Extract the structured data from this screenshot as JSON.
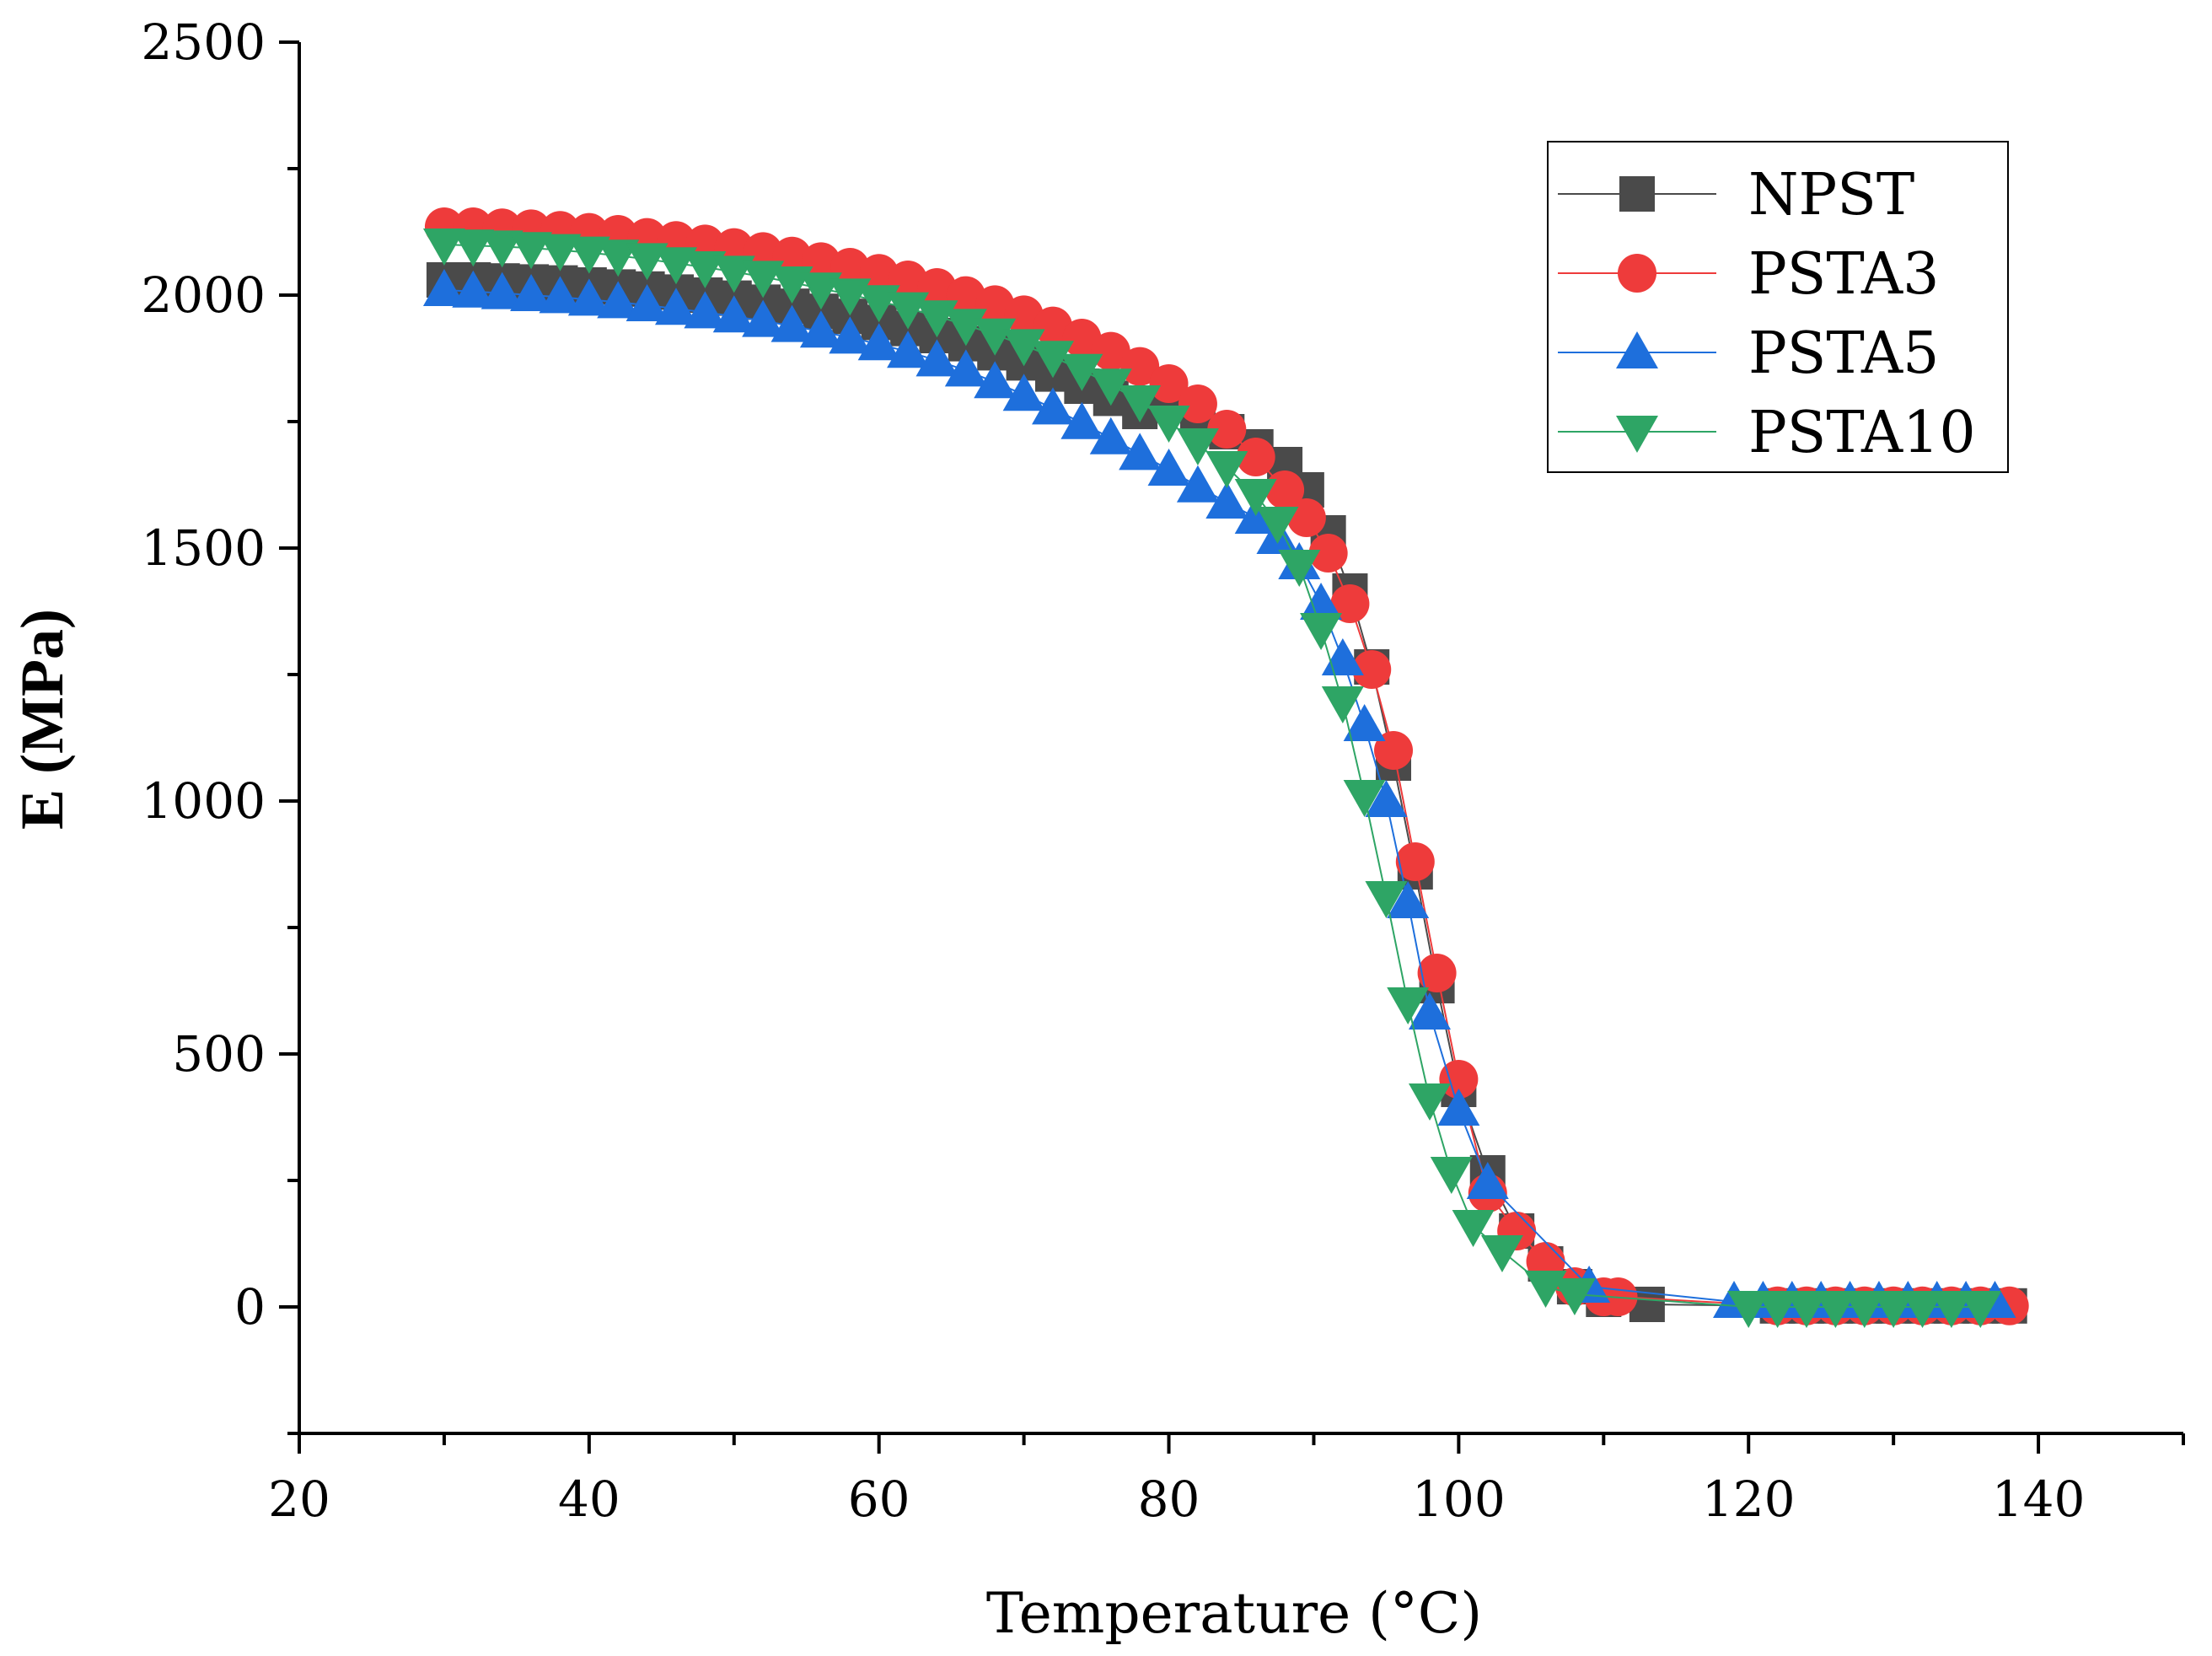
{
  "chart_data": {
    "type": "scatter",
    "title": "",
    "xlabel": "Temperature (°C)",
    "ylabel": "E (MPa)",
    "xlim": [
      20,
      150
    ],
    "ylim": [
      -250,
      2500
    ],
    "xticks": [
      20,
      40,
      60,
      80,
      100,
      120,
      140
    ],
    "yticks": [
      0,
      500,
      1000,
      1500,
      2000,
      2500
    ],
    "xtick_labels": [
      "20",
      "40",
      "60",
      "80",
      "100",
      "120",
      "140"
    ],
    "ytick_labels": [
      "0",
      "500",
      "1000",
      "1500",
      "2000",
      "2500"
    ],
    "legend_position": "top-right",
    "series": [
      {
        "name": "NPST",
        "marker": "square",
        "color": "#4a4a4a",
        "x": [
          30,
          32,
          34,
          36,
          38,
          40,
          42,
          44,
          46,
          48,
          50,
          52,
          54,
          56,
          58,
          60,
          62,
          64,
          66,
          68,
          70,
          72,
          74,
          76,
          78,
          80,
          82,
          84,
          86,
          88,
          89.5,
          91,
          92.5,
          94,
          95.5,
          97,
          98.5,
          100,
          102,
          104,
          106,
          108,
          110,
          113,
          122,
          124,
          126,
          128,
          130,
          132,
          134,
          136,
          138
        ],
        "y": [
          2030,
          2030,
          2028,
          2026,
          2024,
          2020,
          2016,
          2012,
          2006,
          2000,
          1994,
          1986,
          1978,
          1968,
          1958,
          1946,
          1934,
          1920,
          1904,
          1886,
          1866,
          1844,
          1820,
          1796,
          1770,
          1785,
          1760,
          1730,
          1700,
          1665,
          1615,
          1530,
          1415,
          1265,
          1075,
          860,
          635,
          430,
          265,
          150,
          85,
          40,
          15,
          5,
          2,
          2,
          2,
          2,
          2,
          2,
          2,
          2,
          2
        ]
      },
      {
        "name": "PSTA3",
        "marker": "circle",
        "color": "#ee3b3b",
        "x": [
          30,
          32,
          34,
          36,
          38,
          40,
          42,
          44,
          46,
          48,
          50,
          52,
          54,
          56,
          58,
          60,
          62,
          64,
          66,
          68,
          70,
          72,
          74,
          76,
          78,
          80,
          82,
          84,
          86,
          88,
          89.5,
          91,
          92.5,
          94,
          95.5,
          97,
          98.5,
          100,
          102,
          104,
          106,
          108,
          110,
          111,
          122,
          124,
          126,
          128,
          130,
          132,
          134,
          136,
          138
        ],
        "y": [
          2135,
          2135,
          2133,
          2131,
          2128,
          2124,
          2120,
          2114,
          2108,
          2101,
          2094,
          2086,
          2077,
          2066,
          2055,
          2043,
          2030,
          2015,
          1999,
          1981,
          1961,
          1939,
          1915,
          1889,
          1859,
          1825,
          1785,
          1735,
          1680,
          1615,
          1560,
          1490,
          1390,
          1260,
          1100,
          880,
          660,
          450,
          225,
          150,
          90,
          40,
          20,
          20,
          2,
          2,
          2,
          2,
          2,
          2,
          2,
          2,
          2
        ]
      },
      {
        "name": "PSTA5",
        "marker": "triangle-up",
        "color": "#1e6fdc",
        "x": [
          30,
          32,
          34,
          36,
          38,
          40,
          42,
          44,
          46,
          48,
          50,
          52,
          54,
          56,
          58,
          60,
          62,
          64,
          66,
          68,
          70,
          72,
          74,
          76,
          78,
          80,
          82,
          84,
          86,
          87.5,
          89,
          90.5,
          92,
          93.5,
          95,
          96.5,
          98,
          100,
          102,
          109,
          119,
          121,
          123,
          125,
          127,
          129,
          131,
          133,
          135,
          137
        ],
        "y": [
          2010,
          2007,
          2004,
          2000,
          1996,
          1991,
          1986,
          1980,
          1973,
          1966,
          1958,
          1949,
          1939,
          1928,
          1916,
          1903,
          1888,
          1871,
          1851,
          1828,
          1803,
          1776,
          1747,
          1717,
          1686,
          1655,
          1622,
          1590,
          1560,
          1520,
          1470,
          1390,
          1280,
          1150,
          1000,
          800,
          580,
          390,
          245,
          40,
          10,
          10,
          10,
          10,
          10,
          10,
          10,
          10,
          10,
          10
        ]
      },
      {
        "name": "PSTA10",
        "marker": "triangle-down",
        "color": "#2ea565",
        "x": [
          30,
          32,
          34,
          36,
          38,
          40,
          42,
          44,
          46,
          48,
          50,
          52,
          54,
          56,
          58,
          60,
          62,
          64,
          66,
          68,
          70,
          72,
          74,
          76,
          78,
          80,
          82,
          84,
          86,
          87.5,
          89,
          90.5,
          92,
          93.5,
          95,
          96.5,
          98,
          99.5,
          101,
          103,
          106,
          108,
          120,
          122,
          124,
          126,
          128,
          130,
          132,
          134,
          136
        ],
        "y": [
          2100,
          2098,
          2096,
          2093,
          2089,
          2084,
          2078,
          2071,
          2063,
          2055,
          2046,
          2036,
          2025,
          2013,
          2001,
          1988,
          1974,
          1958,
          1941,
          1922,
          1901,
          1878,
          1852,
          1823,
          1790,
          1750,
          1705,
          1660,
          1605,
          1550,
          1465,
          1340,
          1195,
          1010,
          810,
          600,
          410,
          265,
          160,
          110,
          40,
          25,
          0,
          0,
          0,
          0,
          0,
          0,
          0,
          0,
          0
        ]
      }
    ]
  }
}
